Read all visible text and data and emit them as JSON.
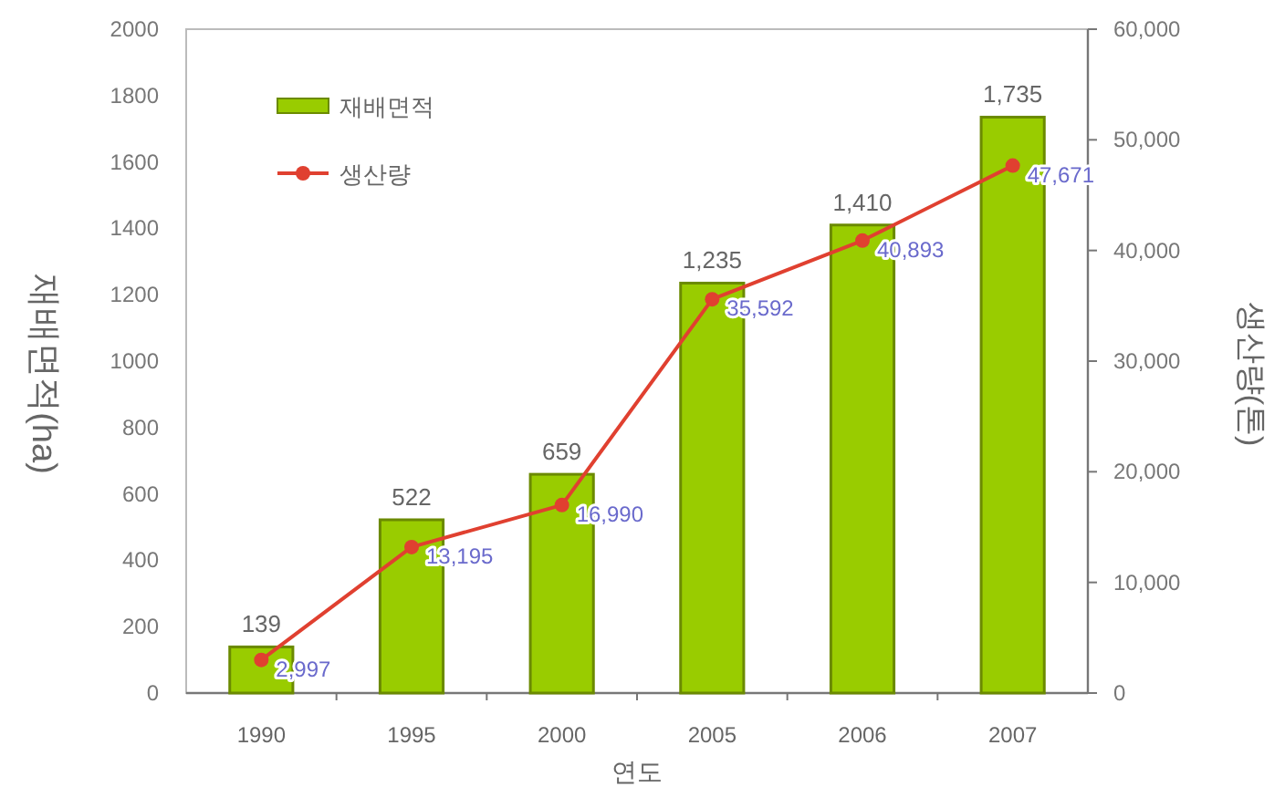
{
  "chart_data": {
    "type": "bar",
    "categories": [
      "1990",
      "1995",
      "2000",
      "2005",
      "2006",
      "2007"
    ],
    "xlabel": "연도",
    "ylabel": "재배면적(ha)",
    "y2label": "생산량(톤)",
    "ylim": [
      0,
      2000
    ],
    "yticks": [
      0,
      200,
      400,
      600,
      800,
      1000,
      1200,
      1400,
      1600,
      1800,
      2000
    ],
    "y2lim": [
      0,
      60000
    ],
    "y2ticks": [
      {
        "value": 0,
        "label": "0"
      },
      {
        "value": 10000,
        "label": "10,000"
      },
      {
        "value": 20000,
        "label": "20,000"
      },
      {
        "value": 30000,
        "label": "30,000"
      },
      {
        "value": 40000,
        "label": "40,000"
      },
      {
        "value": 50000,
        "label": "50,000"
      },
      {
        "value": 60000,
        "label": "60,000"
      }
    ],
    "legend": "top left",
    "grid": false,
    "series": [
      {
        "name": "재배면적",
        "color": "#99cc00",
        "values": [
          139,
          522,
          659,
          1235,
          1410,
          1735
        ],
        "value_labels": [
          "139",
          "522",
          "659",
          "1,235",
          "1,410",
          "1,735"
        ]
      },
      {
        "name": "생산량",
        "type": "line",
        "axis": "y2",
        "color": "#e04030",
        "marker": "circle",
        "line_style": "solid",
        "values": [
          2997,
          13195,
          16990,
          35592,
          40893,
          47671
        ],
        "value_labels": [
          "2,997",
          "13,195",
          "16,990",
          "35,592",
          "40,893",
          "47,671"
        ]
      }
    ]
  }
}
